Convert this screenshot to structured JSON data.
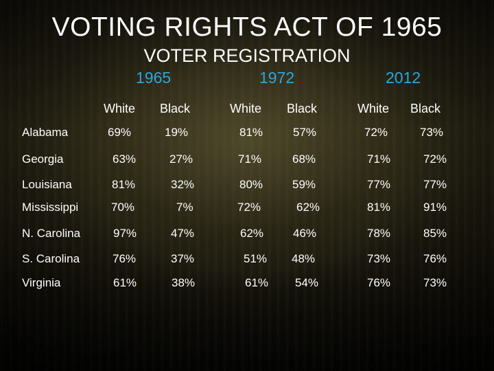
{
  "title": "VOTING RIGHTS ACT OF 1965",
  "subtitle": "VOTER REGISTRATION",
  "years": [
    "1965",
    "1972",
    "2012"
  ],
  "columns": [
    "White",
    "Black",
    "White",
    "Black",
    "White",
    "Black"
  ],
  "rows": [
    {
      "state": "Alabama",
      "values": [
        "69%",
        "19%",
        "81%",
        "57%",
        "72%",
        "73%"
      ]
    },
    {
      "state": "Georgia",
      "values": [
        "63%",
        "27%",
        "71%",
        "68%",
        "71%",
        "72%"
      ]
    },
    {
      "state": "Louisiana",
      "values": [
        "81%",
        "32%",
        "80%",
        "59%",
        "77%",
        "77%"
      ]
    },
    {
      "state": "Mississippi",
      "values": [
        "70%",
        "7%",
        "72%",
        "62%",
        "81%",
        "91%"
      ]
    },
    {
      "state": "N. Carolina",
      "values": [
        "97%",
        "47%",
        "62%",
        "46%",
        "78%",
        "85%"
      ]
    },
    {
      "state": "S. Carolina",
      "values": [
        "76%",
        "37%",
        "51%",
        "48%",
        "73%",
        "76%"
      ]
    },
    {
      "state": "Virginia",
      "values": [
        "61%",
        "38%",
        "61%",
        "54%",
        "76%",
        "73%"
      ]
    }
  ],
  "colors": {
    "text": "#ffffff",
    "year": "#2aa7e0"
  }
}
